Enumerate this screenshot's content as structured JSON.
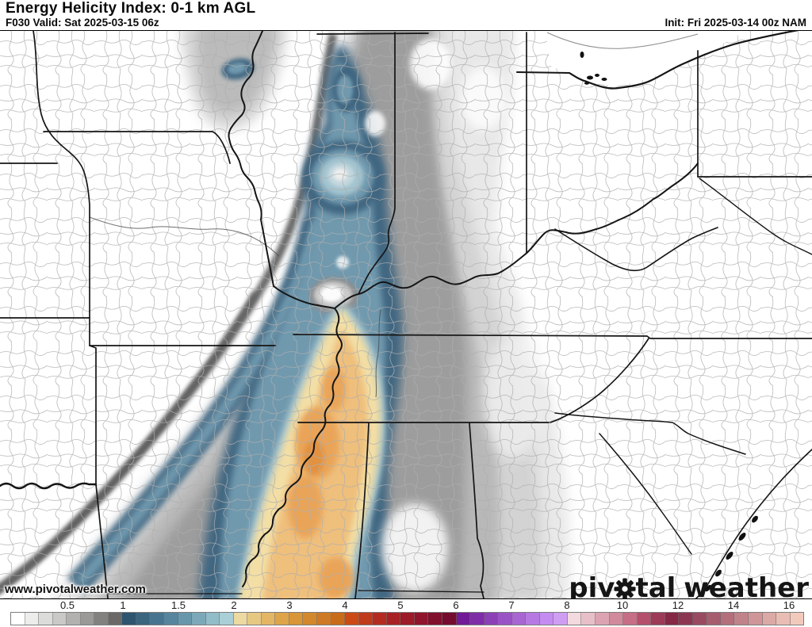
{
  "header": {
    "title": "Energy Helicity Index: 0-1 km AGL",
    "valid_line": "F030 Valid: Sat 2025-03-15 06z",
    "init_line": "Init: Fri 2025-03-14 00z NAM"
  },
  "map": {
    "watermark": "www.pivotalweather.com",
    "logo": {
      "part1": "piv",
      "part2": "tal",
      "part3": "weather",
      "gear_icon": "gear"
    },
    "description": "NAM model Energy Helicity Index 0-1 km AGL filled contours over Midwest/Southeast US counties; gray shading below 1, blue band 1-2 from east Texas northeast through Arkansas, Missouri, Illinois and Indiana, orange core 2-4 over Mississippi"
  },
  "colorbar": {
    "ticks": [
      "0.5",
      "1",
      "1.5",
      "2",
      "3",
      "4",
      "5",
      "6",
      "7",
      "8",
      "10",
      "12",
      "14",
      "16"
    ],
    "cells": [
      "#ffffff",
      "#ededeb",
      "#dcdcda",
      "#cac9c8",
      "#b2b1b0",
      "#9a9998",
      "#828180",
      "#6a6968",
      "#2e5470",
      "#3b647f",
      "#48748f",
      "#57859e",
      "#6897ab",
      "#7ca9b9",
      "#92bcc8",
      "#aacfd6",
      "#ecdaa2",
      "#e7c883",
      "#e2b665",
      "#dda449",
      "#d89638",
      "#d3882e",
      "#ce7a24",
      "#c96c1a",
      "#cc4a15",
      "#c03a1c",
      "#b42c21",
      "#a82225",
      "#9b1b28",
      "#8e152b",
      "#81102d",
      "#740c2f",
      "#701a97",
      "#7e2da6",
      "#8c40b5",
      "#9a53c4",
      "#a866d3",
      "#b679e2",
      "#c48cf1",
      "#cf9ef3",
      "#f2dade",
      "#e7bfc8",
      "#dca4b2",
      "#d1899c",
      "#c66e86",
      "#b44f6c",
      "#9c3a57",
      "#842845",
      "#8b3752",
      "#984a60",
      "#a65d6e",
      "#b3707c",
      "#c1838a",
      "#ce9698",
      "#dcaaa6",
      "#e9bdb4",
      "#f2cabc"
    ],
    "border_color": "#7d7d7d"
  },
  "palette": {
    "white": "#ffffff",
    "gray_l1": "#e8e8e8",
    "gray_l2": "#d2d2d2",
    "gray_l3": "#b7b7b7",
    "gray_l4": "#9c9c9c",
    "gray_rim": "#5c5c5c",
    "gray_ring": "#8f8f8f",
    "blue_outer": "#3f6681",
    "blue_mid": "#6f99ae",
    "blue_inner": "#a3c4d0",
    "blue_core": "#35597a",
    "blue_pale": "#c2d7dd",
    "orange_pale": "#f3dfa6",
    "orange_mid": "#efbf7b",
    "orange_deep": "#e9a458",
    "orange_core": "#e2923f",
    "county_line": "#aeaeae",
    "state_border": "#151515",
    "thin_river": "#4a4a4a",
    "text": "#0a0a0a"
  }
}
